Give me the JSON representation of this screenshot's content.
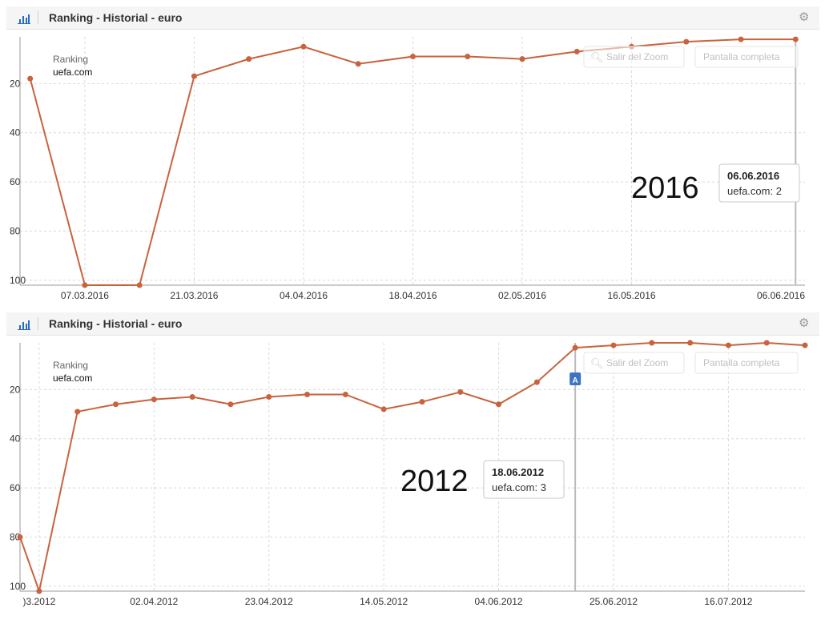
{
  "colors": {
    "series": "#c8633e",
    "grid": "#d9d9d9",
    "axis": "#999999",
    "text": "#333333"
  },
  "panels": [
    {
      "header": {
        "icon": "bar-chart-icon",
        "title": "Ranking - Historial - euro",
        "settings_icon": "gear-icon"
      },
      "legend": {
        "label": "Ranking",
        "series_name": "uefa.com"
      },
      "buttons": {
        "reset_zoom": "Salir del Zoom",
        "fullscreen": "Pantalla completa"
      },
      "year_label": "2016",
      "tooltip": {
        "date": "06.06.2016",
        "value_text": "uefa.com: 2"
      }
    },
    {
      "header": {
        "icon": "bar-chart-icon",
        "title": "Ranking - Historial - euro",
        "settings_icon": "gear-icon"
      },
      "legend": {
        "label": "Ranking",
        "series_name": "uefa.com"
      },
      "buttons": {
        "reset_zoom": "Salir del Zoom",
        "fullscreen": "Pantalla completa"
      },
      "year_label": "2012",
      "tooltip": {
        "date": "18.06.2012",
        "value_text": "uefa.com: 3"
      },
      "marker": {
        "icon": "flag-icon",
        "label": "A"
      }
    }
  ],
  "chart_data": [
    {
      "type": "line",
      "title": "Ranking - Historial - euro",
      "y_reversed": true,
      "grid": true,
      "ylim": [
        1,
        102
      ],
      "yticks": [
        20,
        40,
        60,
        80,
        100
      ],
      "x_tick_labels": [
        "07.03.2016",
        "21.03.2016",
        "04.04.2016",
        "18.04.2016",
        "02.05.2016",
        "16.05.2016",
        "06.06.2016"
      ],
      "x_tick_days": [
        7,
        21,
        35,
        49,
        63,
        77,
        98
      ],
      "x_start": "29.02.2016",
      "x_range_days": [
        -1.3,
        99.2
      ],
      "series": [
        {
          "name": "uefa.com",
          "x_days": [
            0,
            7,
            14,
            21,
            28,
            35,
            42,
            49,
            56,
            63,
            70,
            77,
            84,
            91,
            98
          ],
          "values": [
            18,
            102,
            102,
            17,
            10,
            5,
            12,
            9,
            9,
            10,
            7,
            5,
            3,
            2,
            2
          ]
        }
      ],
      "tooltip": {
        "date": "06.06.2016",
        "value": 2
      }
    },
    {
      "type": "line",
      "title": "Ranking - Historial - euro",
      "y_reversed": true,
      "grid": true,
      "ylim": [
        1,
        102
      ],
      "yticks": [
        20,
        40,
        60,
        80,
        100
      ],
      "x_tick_labels": [
        ")3.2012",
        "02.04.2012",
        "23.04.2012",
        "14.05.2012",
        "04.06.2012",
        "25.06.2012",
        "16.07.2012"
      ],
      "x_tick_days": [
        0,
        21,
        42,
        63,
        84,
        105,
        126
      ],
      "x_start": "12.03.2012",
      "x_range_days": [
        -3.5,
        140
      ],
      "series": [
        {
          "name": "uefa.com",
          "x_days": [
            -3.5,
            0,
            7,
            14,
            21,
            28,
            35,
            42,
            49,
            56,
            63,
            70,
            77,
            84,
            91,
            98,
            105,
            112,
            119,
            126,
            133,
            140
          ],
          "values": [
            80,
            102,
            29,
            26,
            24,
            23,
            26,
            23,
            22,
            22,
            28,
            25,
            21,
            26,
            17,
            3,
            2,
            1,
            1,
            2,
            1,
            2
          ]
        }
      ],
      "tooltip": {
        "date": "18.06.2012",
        "value": 3
      },
      "marker": {
        "label": "A",
        "date": "18.06.2012"
      }
    }
  ]
}
